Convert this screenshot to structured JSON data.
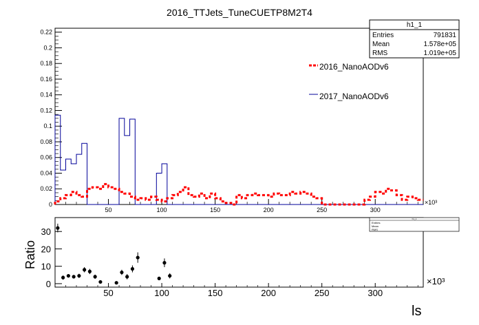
{
  "title": "2016_TTJets_TuneCUETP8M2T4",
  "stats_box": {
    "name": "h1_1",
    "rows": [
      {
        "label": "Entries",
        "value": "791831"
      },
      {
        "label": "Mean",
        "value": "1.578e+05"
      },
      {
        "label": "RMS",
        "value": "1.019e+05"
      }
    ]
  },
  "legend": [
    "2016_NanoAODv6",
    "2017_NanoAODv6"
  ],
  "colors": {
    "series_2016": "#ff0000",
    "series_2017": "#000099",
    "ratio": "#000000"
  },
  "x_multiplier": "×10³",
  "chart_data": [
    {
      "type": "line",
      "title": "2016_TTJets_TuneCUETP8M2T4",
      "xlabel": "",
      "ylabel": "",
      "xlim": [
        0,
        345000
      ],
      "ylim": [
        0,
        0.225
      ],
      "x_ticks": [
        50000,
        100000,
        150000,
        200000,
        250000,
        300000
      ],
      "x_tick_labels": [
        "50",
        "100",
        "150",
        "200",
        "250",
        "300"
      ],
      "y_ticks": [
        0,
        0.02,
        0.04,
        0.06,
        0.08,
        0.1,
        0.12,
        0.14,
        0.16,
        0.18,
        0.2,
        0.22
      ],
      "y_tick_labels": [
        "0",
        "0.02",
        "0.04",
        "0.06",
        "0.08",
        "0.1",
        "0.12",
        "0.14",
        "0.16",
        "0.18",
        "0.2",
        "0.22"
      ],
      "grid": false,
      "legend_position": "top-right",
      "bin_width": 5000,
      "series": [
        {
          "name": "2016_NanoAODv6",
          "style": "dashed-step",
          "x": [
            0,
            5000,
            10000,
            15000,
            20000,
            25000,
            30000,
            35000,
            40000,
            45000,
            50000,
            55000,
            60000,
            65000,
            70000,
            75000,
            80000,
            85000,
            90000,
            95000,
            100000,
            105000,
            110000,
            115000,
            120000,
            125000,
            130000,
            135000,
            140000,
            145000,
            150000,
            155000,
            160000,
            165000,
            170000,
            175000,
            180000,
            185000,
            190000,
            195000,
            200000,
            205000,
            210000,
            215000,
            220000,
            225000,
            230000,
            235000,
            240000,
            245000,
            250000,
            255000,
            260000,
            265000,
            270000,
            275000,
            280000,
            285000,
            290000,
            295000,
            300000,
            305000,
            310000,
            315000,
            320000,
            325000,
            330000,
            335000,
            340000
          ],
          "values": [
            0.004,
            0.008,
            0.012,
            0.016,
            0.012,
            0.01,
            0.02,
            0.022,
            0.02,
            0.026,
            0.022,
            0.02,
            0.016,
            0.014,
            0.01,
            0.006,
            0.008,
            0.006,
            0.01,
            0.006,
            0.004,
            0.008,
            0.012,
            0.016,
            0.022,
            0.012,
            0.01,
            0.014,
            0.008,
            0.014,
            0.008,
            0.004,
            0.002,
            0.0,
            0.012,
            0.008,
            0.012,
            0.014,
            0.012,
            0.012,
            0.01,
            0.014,
            0.012,
            0.012,
            0.016,
            0.014,
            0.016,
            0.014,
            0.01,
            0.008,
            0.0,
            0.0,
            0.0,
            0.0,
            0.0,
            0.0,
            0.0,
            0.0,
            0.006,
            0.01,
            0.016,
            0.014,
            0.02,
            0.018,
            0.012,
            0.006,
            0.01,
            0.008,
            0.006
          ]
        },
        {
          "name": "2017_NanoAODv6",
          "style": "solid-step",
          "x": [
            0,
            5000,
            10000,
            15000,
            20000,
            25000,
            30000,
            35000,
            40000,
            45000,
            50000,
            55000,
            60000,
            65000,
            70000,
            75000,
            80000,
            85000,
            90000,
            95000,
            100000,
            105000,
            110000,
            115000,
            120000,
            125000,
            130000,
            135000,
            140000,
            145000,
            150000,
            155000,
            160000,
            165000,
            170000,
            175000,
            180000,
            185000,
            190000,
            195000,
            200000,
            205000,
            210000,
            215000,
            220000,
            225000,
            230000,
            235000,
            240000,
            245000,
            250000,
            255000,
            260000,
            265000,
            270000,
            275000,
            280000,
            285000,
            290000,
            295000,
            300000,
            305000,
            310000,
            315000,
            320000,
            325000,
            330000,
            335000,
            340000
          ],
          "values": [
            0.114,
            0.044,
            0.058,
            0.052,
            0.064,
            0.078,
            0.0,
            0.0,
            0.0,
            0.0,
            0.0,
            0.0,
            0.11,
            0.088,
            0.109,
            0.0,
            0.0,
            0.0,
            0.0,
            0.04,
            0.052,
            0.0,
            0.0,
            0.0,
            0.0,
            0.0,
            0.0,
            0.0,
            0.0,
            0.0,
            0.0,
            0.0,
            0.0,
            0.0,
            0.0,
            0.0,
            0.0,
            0.0,
            0.0,
            0.0,
            0.0,
            0.0,
            0.0,
            0.0,
            0.0,
            0.0,
            0.0,
            0.0,
            0.0,
            0.0,
            0.0,
            0.0,
            0.0,
            0.0,
            0.0,
            0.0,
            0.0,
            0.0,
            0.0,
            0.0,
            0.0,
            0.0,
            0.0,
            0.0,
            0.0,
            0.0,
            0.0,
            0.0,
            0.0
          ]
        }
      ]
    },
    {
      "type": "scatter",
      "xlabel": "ls",
      "ylabel": "Ratio",
      "xlim": [
        0,
        345000
      ],
      "ylim": [
        -2,
        38
      ],
      "x_ticks": [
        50000,
        100000,
        150000,
        200000,
        250000,
        300000
      ],
      "x_tick_labels": [
        "50",
        "100",
        "150",
        "200",
        "250",
        "300"
      ],
      "y_ticks": [
        0,
        10,
        20,
        30
      ],
      "y_tick_labels": [
        "0",
        "10",
        "20",
        "30"
      ],
      "grid": false,
      "points": [
        {
          "x": 2500,
          "y": 32,
          "err": 2.5
        },
        {
          "x": 7500,
          "y": 3.5,
          "err": 1.2
        },
        {
          "x": 12500,
          "y": 4.5,
          "err": 1.0
        },
        {
          "x": 17500,
          "y": 4.0,
          "err": 1.0
        },
        {
          "x": 22500,
          "y": 4.5,
          "err": 1.2
        },
        {
          "x": 27500,
          "y": 8.0,
          "err": 1.5
        },
        {
          "x": 32500,
          "y": 7.0,
          "err": 1.5
        },
        {
          "x": 37500,
          "y": 4.0,
          "err": 1.2
        },
        {
          "x": 42500,
          "y": 1.0,
          "err": 0.8
        },
        {
          "x": 57500,
          "y": 0.5,
          "err": 0.6
        },
        {
          "x": 62500,
          "y": 6.5,
          "err": 1.5
        },
        {
          "x": 67500,
          "y": 4.0,
          "err": 1.5
        },
        {
          "x": 72500,
          "y": 8.5,
          "err": 2.0
        },
        {
          "x": 77500,
          "y": 15,
          "err": 3.0
        },
        {
          "x": 97500,
          "y": 3.0,
          "err": 1.0
        },
        {
          "x": 102500,
          "y": 12,
          "err": 2.5
        },
        {
          "x": 107500,
          "y": 4.5,
          "err": 1.5
        }
      ],
      "stats_box": {
        "name": "h1_1",
        "rows": [
          "Entries",
          "Mean",
          "RMS"
        ]
      }
    }
  ]
}
